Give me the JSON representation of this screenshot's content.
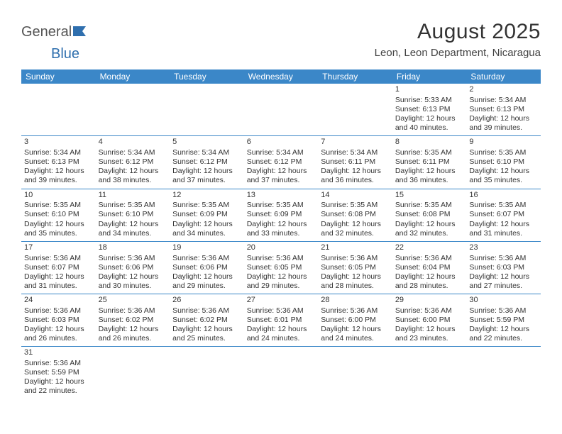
{
  "logo": {
    "text1": "General",
    "text2": "Blue"
  },
  "title": "August 2025",
  "location": "Leon, Leon Department, Nicaragua",
  "colors": {
    "header_bg": "#3b87c8",
    "header_text": "#ffffff",
    "border": "#3b87c8",
    "text": "#333333",
    "logo_gray": "#555555",
    "logo_blue": "#2f6fae",
    "background": "#ffffff"
  },
  "typography": {
    "title_fontsize": 30,
    "location_fontsize": 15,
    "dayhead_fontsize": 12,
    "cell_fontsize": 10.5
  },
  "day_headers": [
    "Sunday",
    "Monday",
    "Tuesday",
    "Wednesday",
    "Thursday",
    "Friday",
    "Saturday"
  ],
  "weeks": [
    [
      null,
      null,
      null,
      null,
      null,
      {
        "n": "1",
        "sr": "5:33 AM",
        "ss": "6:13 PM",
        "dl": "12 hours and 40 minutes."
      },
      {
        "n": "2",
        "sr": "5:34 AM",
        "ss": "6:13 PM",
        "dl": "12 hours and 39 minutes."
      }
    ],
    [
      {
        "n": "3",
        "sr": "5:34 AM",
        "ss": "6:13 PM",
        "dl": "12 hours and 39 minutes."
      },
      {
        "n": "4",
        "sr": "5:34 AM",
        "ss": "6:12 PM",
        "dl": "12 hours and 38 minutes."
      },
      {
        "n": "5",
        "sr": "5:34 AM",
        "ss": "6:12 PM",
        "dl": "12 hours and 37 minutes."
      },
      {
        "n": "6",
        "sr": "5:34 AM",
        "ss": "6:12 PM",
        "dl": "12 hours and 37 minutes."
      },
      {
        "n": "7",
        "sr": "5:34 AM",
        "ss": "6:11 PM",
        "dl": "12 hours and 36 minutes."
      },
      {
        "n": "8",
        "sr": "5:35 AM",
        "ss": "6:11 PM",
        "dl": "12 hours and 36 minutes."
      },
      {
        "n": "9",
        "sr": "5:35 AM",
        "ss": "6:10 PM",
        "dl": "12 hours and 35 minutes."
      }
    ],
    [
      {
        "n": "10",
        "sr": "5:35 AM",
        "ss": "6:10 PM",
        "dl": "12 hours and 35 minutes."
      },
      {
        "n": "11",
        "sr": "5:35 AM",
        "ss": "6:10 PM",
        "dl": "12 hours and 34 minutes."
      },
      {
        "n": "12",
        "sr": "5:35 AM",
        "ss": "6:09 PM",
        "dl": "12 hours and 34 minutes."
      },
      {
        "n": "13",
        "sr": "5:35 AM",
        "ss": "6:09 PM",
        "dl": "12 hours and 33 minutes."
      },
      {
        "n": "14",
        "sr": "5:35 AM",
        "ss": "6:08 PM",
        "dl": "12 hours and 32 minutes."
      },
      {
        "n": "15",
        "sr": "5:35 AM",
        "ss": "6:08 PM",
        "dl": "12 hours and 32 minutes."
      },
      {
        "n": "16",
        "sr": "5:35 AM",
        "ss": "6:07 PM",
        "dl": "12 hours and 31 minutes."
      }
    ],
    [
      {
        "n": "17",
        "sr": "5:36 AM",
        "ss": "6:07 PM",
        "dl": "12 hours and 31 minutes."
      },
      {
        "n": "18",
        "sr": "5:36 AM",
        "ss": "6:06 PM",
        "dl": "12 hours and 30 minutes."
      },
      {
        "n": "19",
        "sr": "5:36 AM",
        "ss": "6:06 PM",
        "dl": "12 hours and 29 minutes."
      },
      {
        "n": "20",
        "sr": "5:36 AM",
        "ss": "6:05 PM",
        "dl": "12 hours and 29 minutes."
      },
      {
        "n": "21",
        "sr": "5:36 AM",
        "ss": "6:05 PM",
        "dl": "12 hours and 28 minutes."
      },
      {
        "n": "22",
        "sr": "5:36 AM",
        "ss": "6:04 PM",
        "dl": "12 hours and 28 minutes."
      },
      {
        "n": "23",
        "sr": "5:36 AM",
        "ss": "6:03 PM",
        "dl": "12 hours and 27 minutes."
      }
    ],
    [
      {
        "n": "24",
        "sr": "5:36 AM",
        "ss": "6:03 PM",
        "dl": "12 hours and 26 minutes."
      },
      {
        "n": "25",
        "sr": "5:36 AM",
        "ss": "6:02 PM",
        "dl": "12 hours and 26 minutes."
      },
      {
        "n": "26",
        "sr": "5:36 AM",
        "ss": "6:02 PM",
        "dl": "12 hours and 25 minutes."
      },
      {
        "n": "27",
        "sr": "5:36 AM",
        "ss": "6:01 PM",
        "dl": "12 hours and 24 minutes."
      },
      {
        "n": "28",
        "sr": "5:36 AM",
        "ss": "6:00 PM",
        "dl": "12 hours and 24 minutes."
      },
      {
        "n": "29",
        "sr": "5:36 AM",
        "ss": "6:00 PM",
        "dl": "12 hours and 23 minutes."
      },
      {
        "n": "30",
        "sr": "5:36 AM",
        "ss": "5:59 PM",
        "dl": "12 hours and 22 minutes."
      }
    ],
    [
      {
        "n": "31",
        "sr": "5:36 AM",
        "ss": "5:59 PM",
        "dl": "12 hours and 22 minutes."
      },
      null,
      null,
      null,
      null,
      null,
      null
    ]
  ],
  "labels": {
    "sunrise": "Sunrise: ",
    "sunset": "Sunset: ",
    "daylight": "Daylight: "
  }
}
